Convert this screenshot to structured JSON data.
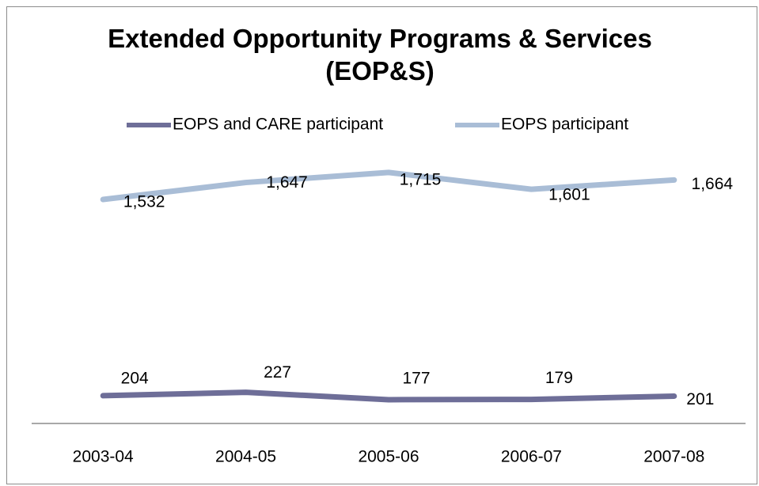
{
  "chart_data": {
    "type": "line",
    "title": "Extended Opportunity Programs & Services  (EOP&S)",
    "categories": [
      "2003-04",
      "2004-05",
      "2005-06",
      "2006-07",
      "2007-08"
    ],
    "series": [
      {
        "name": "EOPS and CARE participant",
        "color": "#6e6e98",
        "values": [
          204,
          227,
          177,
          179,
          201
        ],
        "value_labels": [
          "204",
          "227",
          "177",
          "179",
          "201"
        ]
      },
      {
        "name": "EOPS participant",
        "color": "#a9bdd6",
        "values": [
          1532,
          1647,
          1715,
          1601,
          1664
        ],
        "value_labels": [
          "1,532",
          "1,647",
          "1,715",
          "1,601",
          "1,664"
        ]
      }
    ],
    "ylim": [
      0,
      1800
    ],
    "legend": "top"
  }
}
